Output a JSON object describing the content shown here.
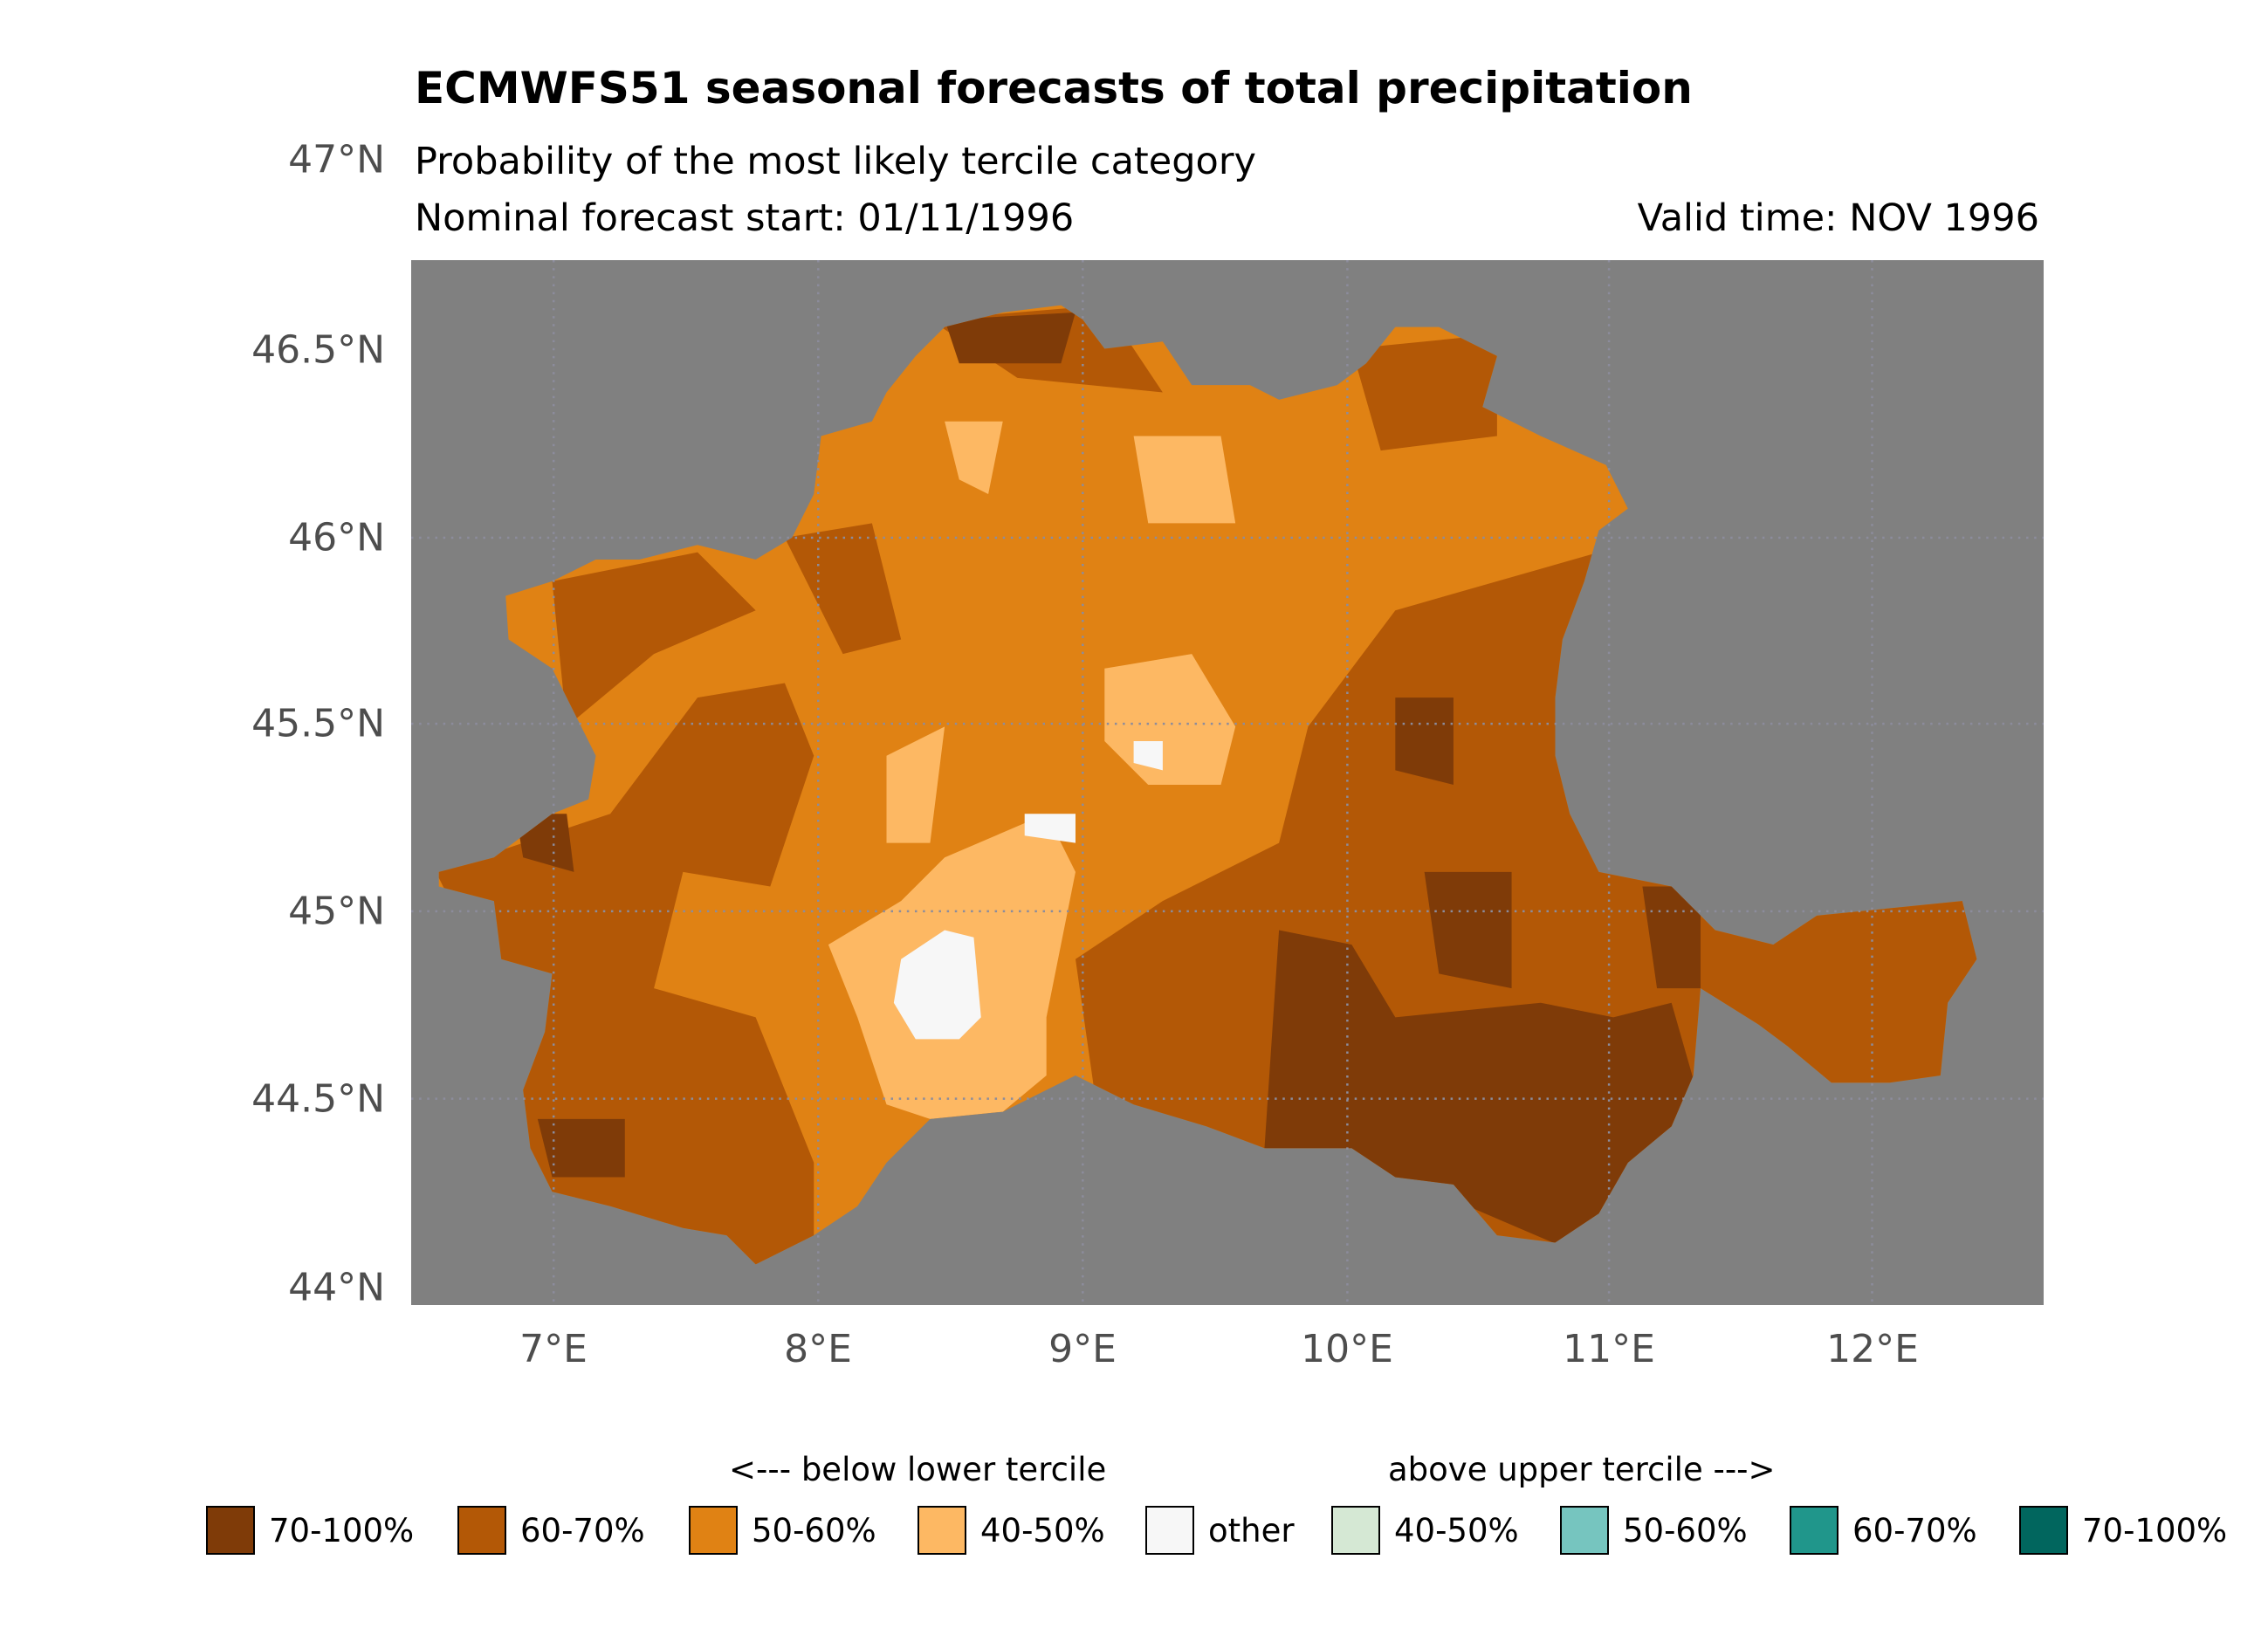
{
  "header": {
    "title": "ECMWFS51 seasonal forecasts of total precipitation",
    "subtitle": "Probability of the most likely tercile category",
    "forecast_start": "Nominal forecast start: 01/11/1996",
    "valid_time": "Valid time: NOV 1996"
  },
  "axes": {
    "y_ticks": [
      "47°N",
      "46.5°N",
      "46°N",
      "45.5°N",
      "45°N",
      "44.5°N",
      "44°N"
    ],
    "x_ticks": [
      "7°E",
      "8°E",
      "9°E",
      "10°E",
      "11°E",
      "12°E"
    ]
  },
  "map": {
    "ocean_color": "#808080"
  },
  "legend": {
    "below_header": "<--- below lower tercile",
    "above_header": "above upper tercile --->",
    "items": [
      {
        "label": "70-100%",
        "color": "#7f3b08"
      },
      {
        "label": "60-70%",
        "color": "#b35806"
      },
      {
        "label": "50-60%",
        "color": "#e08214"
      },
      {
        "label": "40-50%",
        "color": "#fdb863"
      },
      {
        "label": "other",
        "color": "#f7f7f7"
      },
      {
        "label": "40-50%",
        "color": "#d5e8d4"
      },
      {
        "label": "50-60%",
        "color": "#76c5bf"
      },
      {
        "label": "60-70%",
        "color": "#20968b"
      },
      {
        "label": "70-100%",
        "color": "#01665e"
      }
    ]
  }
}
